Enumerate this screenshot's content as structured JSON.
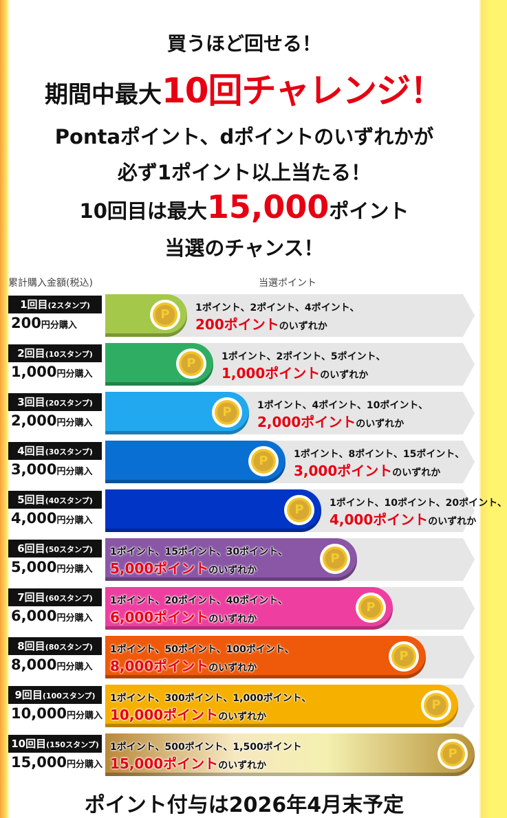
{
  "headline": {
    "line1": "買うほど回せる！",
    "line2_black": "期間中最大",
    "line2_red": "10回チャレンジ！"
  },
  "intro": {
    "line1": "Pontaポイント、dポイントのいずれかが",
    "line2": "必ず1ポイント以上当たる！",
    "line3_pre": "10回目は最大",
    "line3_red": "15,000",
    "line3_post": "ポイント",
    "line4": "当選のチャンス！"
  },
  "table": {
    "col_left": "累計購入金額(税込)",
    "col_right": "当選ポイント",
    "yen_suffix": "円分購入",
    "coin_icon": "coin-p-icon",
    "coin_letter": "P",
    "rows": [
      {
        "round": "1回目",
        "stamps": "(2スタンプ)",
        "amount": "200",
        "points": "1ポイント、2ポイント、4ポイント、",
        "max": "200ポイント",
        "suffix": "のいずれか",
        "fill": 0.12,
        "color": "#a4c94a"
      },
      {
        "round": "2回目",
        "stamps": "(10スタンプ)",
        "amount": "1,000",
        "points": "1ポイント、2ポイント、5ポイント、",
        "max": "1,000ポイント",
        "suffix": "のいずれか",
        "fill": 0.2,
        "color": "#2fae63"
      },
      {
        "round": "3回目",
        "stamps": "(20スタンプ)",
        "amount": "2,000",
        "points": "1ポイント、4ポイント、10ポイント、",
        "max": "2,000ポイント",
        "suffix": "のいずれか",
        "fill": 0.31,
        "color": "#22a8ee"
      },
      {
        "round": "4回目",
        "stamps": "(30スタンプ)",
        "amount": "3,000",
        "points": "1ポイント、8ポイント、15ポイント、",
        "max": "3,000ポイント",
        "suffix": "のいずれか",
        "fill": 0.42,
        "color": "#0a6fd3"
      },
      {
        "round": "5回目",
        "stamps": "(40スタンプ)",
        "amount": "4,000",
        "points": "1ポイント、10ポイント、20ポイント、",
        "max": "4,000ポイント",
        "suffix": "のいずれか",
        "fill": 0.53,
        "color": "#0035c6"
      },
      {
        "round": "6回目",
        "stamps": "(50スタンプ)",
        "amount": "5,000",
        "points": "1ポイント、15ポイント、30ポイント、",
        "max": "5,000ポイント",
        "suffix": "のいずれか",
        "fill": 0.64,
        "color": "#8a56a6"
      },
      {
        "round": "7回目",
        "stamps": "(60スタンプ)",
        "amount": "6,000",
        "points": "1ポイント、20ポイント、40ポイント、",
        "max": "6,000ポイント",
        "suffix": "のいずれか",
        "fill": 0.75,
        "color": "#ee3fa0"
      },
      {
        "round": "8回目",
        "stamps": "(80スタンプ)",
        "amount": "8,000",
        "points": "1ポイント、50ポイント、100ポイント、",
        "max": "8,000ポイント",
        "suffix": "のいずれか",
        "fill": 0.85,
        "color": "#ee5a0a"
      },
      {
        "round": "9回目",
        "stamps": "(100スタンプ)",
        "amount": "10,000",
        "points": "1ポイント、300ポイント、1,000ポイント、",
        "max": "10,000ポイント",
        "suffix": "のいずれか",
        "fill": 0.95,
        "color": "#f6b000"
      },
      {
        "round": "10回目",
        "stamps": "(150スタンプ)",
        "amount": "15,000",
        "points": "1ポイント、500ポイント、1,500ポイント",
        "max": "15,000ポイント",
        "suffix": "のいずれか",
        "fill": 1.0,
        "color": "#c9a04a"
      }
    ]
  },
  "footer": "ポイント付与は2026年4月末予定"
}
